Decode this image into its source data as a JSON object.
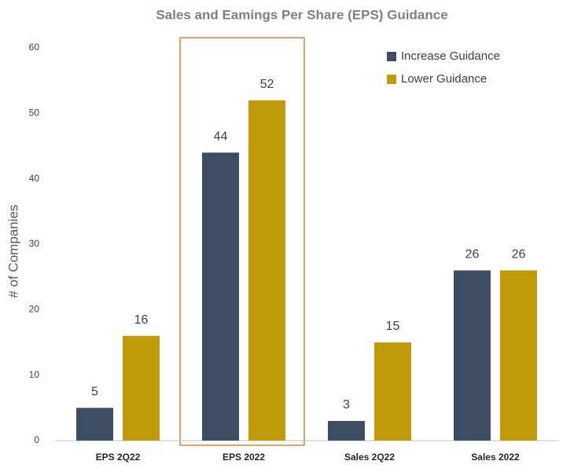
{
  "chart_data": {
    "type": "bar",
    "title": "Sales and Eamings Per Share (EPS) Guidance",
    "y_label": "# of Companies",
    "categories": [
      "EPS 2Q22",
      "EPS 2022",
      "Sales 2Q22",
      "Sales 2022"
    ],
    "series": [
      {
        "name": "Increase Guidance",
        "color": "#3f4d64",
        "values": [
          5,
          44,
          3,
          26
        ]
      },
      {
        "name": "Lower Guidance",
        "color": "#bf9a0b",
        "values": [
          16,
          52,
          15,
          26
        ]
      }
    ],
    "ylim": [
      0,
      60
    ],
    "yticks": [
      0,
      10,
      20,
      30,
      40,
      50,
      60
    ],
    "grid": false,
    "legend": "top-right"
  }
}
